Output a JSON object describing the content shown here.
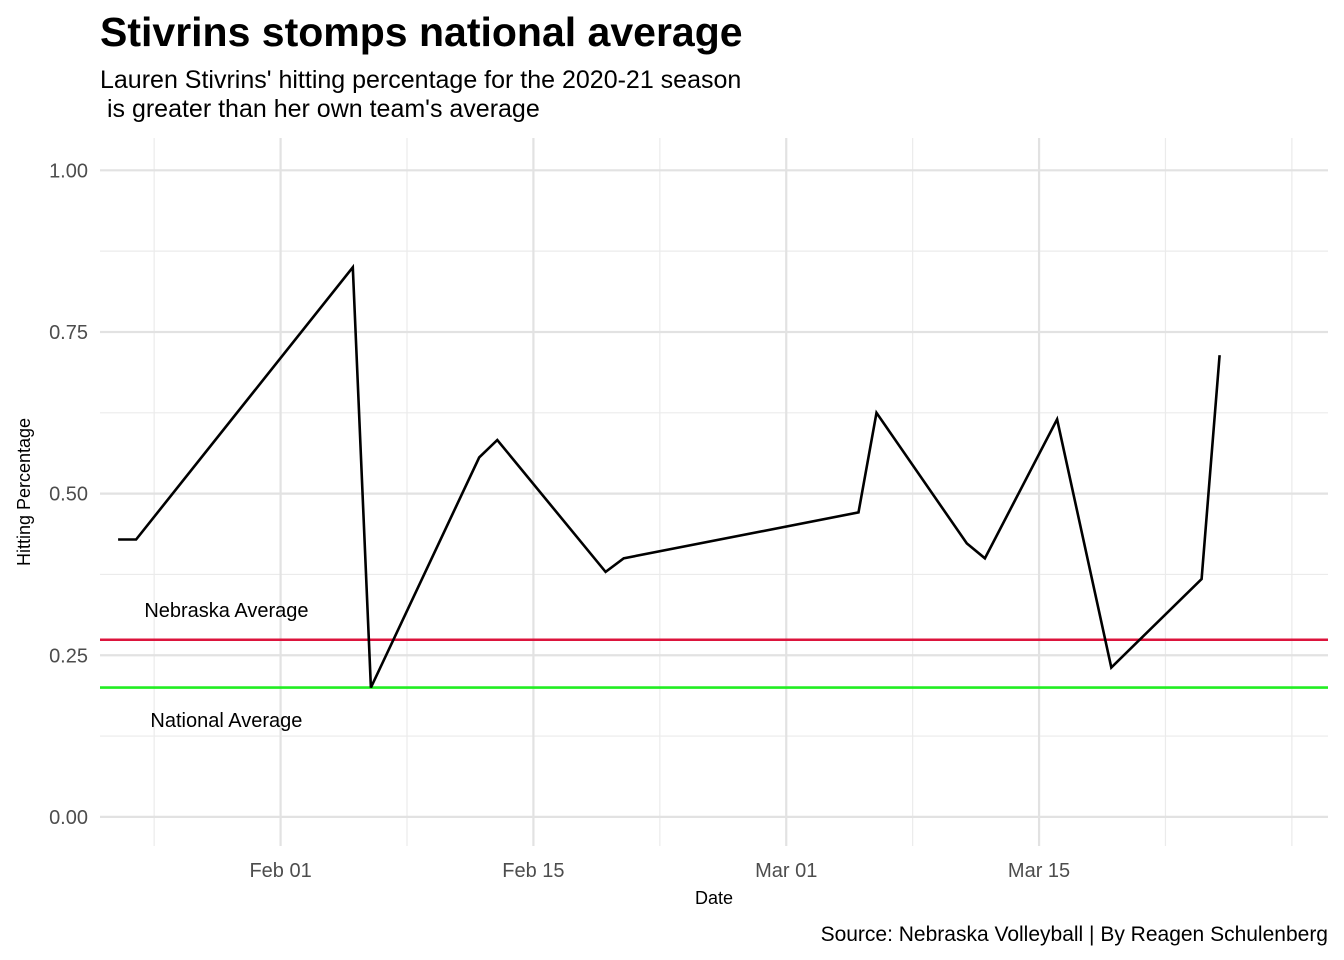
{
  "chart_data": {
    "type": "line",
    "title": "Stivrins stomps national average",
    "subtitle_lines": [
      "Lauren Stivrins' hitting percentage for the 2020-21 season",
      " is greater than her own team's average"
    ],
    "xlabel": "Date",
    "ylabel": "Hitting Percentage",
    "caption": "Source: Nebraska Volleyball | By Reagen Schulenberg",
    "xlim": [
      "2021-01-22",
      "2021-03-31"
    ],
    "ylim": [
      -0.045,
      1.05
    ],
    "grid": true,
    "x_ticks": [
      {
        "date": "2021-02-01",
        "label": "Feb 01"
      },
      {
        "date": "2021-02-15",
        "label": "Feb 15"
      },
      {
        "date": "2021-03-01",
        "label": "Mar 01"
      },
      {
        "date": "2021-03-15",
        "label": "Mar 15"
      }
    ],
    "x_minor_ticks": [
      "2021-01-25",
      "2021-02-08",
      "2021-02-22",
      "2021-03-08",
      "2021-03-22",
      "2021-03-29"
    ],
    "y_ticks": [
      {
        "value": 0,
        "label": "0.00"
      },
      {
        "value": 0.25,
        "label": "0.25"
      },
      {
        "value": 0.5,
        "label": "0.50"
      },
      {
        "value": 0.75,
        "label": "0.75"
      },
      {
        "value": 1.0,
        "label": "1.00"
      }
    ],
    "y_minor_ticks": [
      0.125,
      0.375,
      0.625,
      0.875
    ],
    "series": [
      {
        "color": "#000000",
        "x": [
          "2021-01-23",
          "2021-01-24",
          "2021-02-05",
          "2021-02-06",
          "2021-02-12",
          "2021-02-13",
          "2021-02-19",
          "2021-02-20",
          "2021-03-05",
          "2021-03-06",
          "2021-03-11",
          "2021-03-12",
          "2021-03-16",
          "2021-03-19",
          "2021-03-24",
          "2021-03-25"
        ],
        "y": [
          0.429,
          0.429,
          0.85,
          0.2,
          0.556,
          0.583,
          0.379,
          0.4,
          0.471,
          0.625,
          0.423,
          0.4,
          0.615,
          0.231,
          0.368,
          0.714
        ]
      }
    ],
    "reference_lines": [
      {
        "name": "Nebraska Average",
        "value": 0.274,
        "color": "#dc143c"
      },
      {
        "name": "National Average",
        "value": 0.2,
        "color": "#22ee22"
      }
    ],
    "annotations": [
      {
        "text": "Nebraska Average",
        "x": "2021-01-29",
        "y": 0.32
      },
      {
        "text": "National Average",
        "x": "2021-01-29",
        "y": 0.15
      }
    ]
  }
}
